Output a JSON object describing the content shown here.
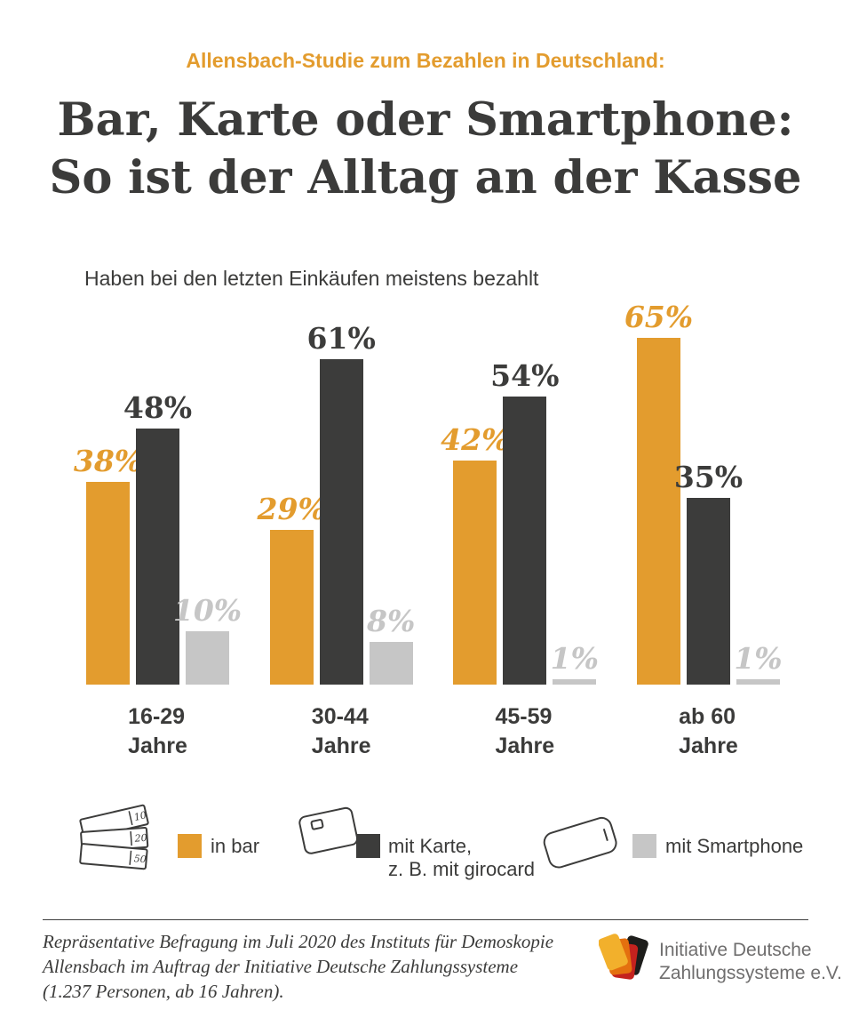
{
  "header": {
    "kicker": "Allensbach-Studie zum Bezahlen in Deutschland:",
    "title_line1": "Bar, Karte oder Smartphone:",
    "title_line2": "So ist der Alltag an der Kasse",
    "subtitle": "Haben bei den letzten Einkäufen meistens bezahlt"
  },
  "chart_data": {
    "type": "bar",
    "categories": [
      "16-29 Jahre",
      "30-44 Jahre",
      "45-59 Jahre",
      "ab 60 Jahre"
    ],
    "categories_display": [
      {
        "range": "16-29",
        "unit": "Jahre"
      },
      {
        "range": "30-44",
        "unit": "Jahre"
      },
      {
        "range": "45-59",
        "unit": "Jahre"
      },
      {
        "range": "ab 60",
        "unit": "Jahre"
      }
    ],
    "series": [
      {
        "name": "in bar",
        "color": "#E39C2E",
        "values": [
          38,
          29,
          42,
          65
        ],
        "labels": [
          "38%",
          "29%",
          "42%",
          "65%"
        ]
      },
      {
        "name": "mit Karte, z. B. mit girocard",
        "color": "#3C3C3B",
        "values": [
          48,
          61,
          54,
          35
        ],
        "labels": [
          "48%",
          "61%",
          "54%",
          "35%"
        ]
      },
      {
        "name": "mit Smartphone",
        "color": "#C6C6C6",
        "values": [
          10,
          8,
          1,
          1
        ],
        "labels": [
          "10%",
          "8%",
          "1%",
          "1%"
        ]
      }
    ],
    "unit": "%",
    "ylim": [
      0,
      70
    ],
    "grid": false,
    "legend_position": "bottom"
  },
  "legend": {
    "items": [
      {
        "icon": "banknotes-icon",
        "label": "in bar"
      },
      {
        "icon": "bank-card-icon",
        "label_line1": "mit Karte,",
        "label_line2": "z. B. mit girocard"
      },
      {
        "icon": "smartphone-icon",
        "label": "mit Smartphone"
      }
    ],
    "banknote_values": [
      "10",
      "20",
      "50"
    ]
  },
  "footer": {
    "source_line1": "Repräsentative Befragung im Juli 2020 des Instituts für Demoskopie",
    "source_line2": "Allensbach im Auftrag der Initiative Deutsche Zahlungssysteme",
    "source_line3": "(1.237 Personen, ab 16 Jahren).",
    "brand_line1": "Initiative Deutsche",
    "brand_line2": "Zahlungssysteme e.V."
  },
  "colors": {
    "accent_orange": "#E39C2E",
    "dark": "#3C3C3B",
    "light_gray": "#C6C6C6",
    "logo_gold": "#F2B02C",
    "logo_orange": "#E4700F",
    "logo_red": "#C4221E",
    "logo_black": "#1D1D1B"
  }
}
